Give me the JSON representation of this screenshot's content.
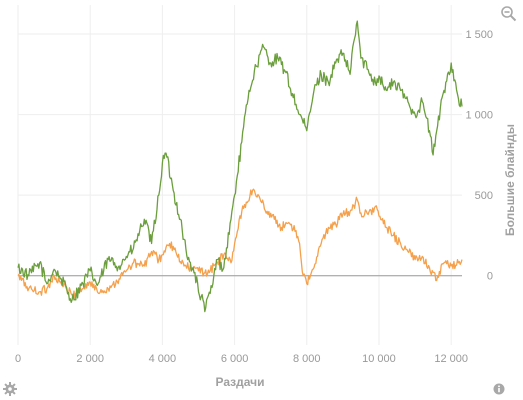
{
  "ui": {
    "icons": {
      "zoom": "zoom-out-icon",
      "settings": "gear-icon",
      "info": "info-icon"
    },
    "colors": {
      "grid": "#eeeeee",
      "zero_line": "#9a9a9a",
      "axis_text": "#999999",
      "icon": "#a8a8a8"
    }
  },
  "chart_data": {
    "type": "line",
    "title": "",
    "xlabel": "Раздачи",
    "ylabel": "Большие блайнды",
    "xlim": [
      0,
      12300
    ],
    "ylim": [
      -430,
      1680
    ],
    "x_ticks": [
      0,
      2000,
      4000,
      6000,
      8000,
      10000,
      12000
    ],
    "x_tick_labels": [
      "0",
      "2 000",
      "4 000",
      "6 000",
      "8 000",
      "10 000",
      "12 000"
    ],
    "y_ticks": [
      0,
      500,
      1000,
      1500
    ],
    "y_tick_labels": [
      "0",
      "500",
      "1 000",
      "1 500"
    ],
    "zero_line": true,
    "grid": true,
    "legend": "none",
    "series": [
      {
        "color": "#6b9e3c",
        "x": [
          0,
          300,
          600,
          800,
          1000,
          1200,
          1500,
          1800,
          2000,
          2200,
          2500,
          2800,
          3000,
          3200,
          3500,
          3700,
          3900,
          4000,
          4100,
          4300,
          4500,
          4700,
          4900,
          5000,
          5200,
          5400,
          5500,
          5700,
          5900,
          6000,
          6200,
          6400,
          6600,
          6800,
          7000,
          7200,
          7400,
          7600,
          7800,
          8000,
          8200,
          8400,
          8600,
          8800,
          9000,
          9200,
          9300,
          9400,
          9500,
          9700,
          9900,
          10000,
          10200,
          10400,
          10600,
          10800,
          11000,
          11200,
          11400,
          11500,
          11600,
          11800,
          12000,
          12200,
          12300
        ],
        "y": [
          50,
          0,
          80,
          -50,
          40,
          -20,
          -150,
          -50,
          30,
          -60,
          100,
          60,
          120,
          170,
          350,
          200,
          500,
          700,
          760,
          530,
          350,
          100,
          20,
          -100,
          -200,
          -50,
          100,
          50,
          350,
          500,
          830,
          1150,
          1300,
          1420,
          1320,
          1350,
          1270,
          1130,
          1000,
          900,
          1150,
          1250,
          1200,
          1320,
          1380,
          1250,
          1450,
          1580,
          1350,
          1280,
          1200,
          1240,
          1150,
          1200,
          1150,
          1080,
          1000,
          1080,
          900,
          750,
          900,
          1150,
          1320,
          1100,
          1050
        ]
      },
      {
        "color": "#f5a04b",
        "x": [
          0,
          300,
          600,
          800,
          1000,
          1200,
          1500,
          1800,
          2000,
          2200,
          2500,
          2800,
          3000,
          3200,
          3500,
          3700,
          3900,
          4000,
          4200,
          4400,
          4600,
          4800,
          5000,
          5300,
          5500,
          5700,
          5900,
          6000,
          6200,
          6500,
          6700,
          6900,
          7100,
          7300,
          7500,
          7700,
          7800,
          7900,
          8000,
          8200,
          8400,
          8600,
          8800,
          9000,
          9200,
          9400,
          9500,
          9700,
          9900,
          10000,
          10200,
          10400,
          10600,
          10800,
          11000,
          11200,
          11400,
          11600,
          11800,
          12000,
          12200,
          12300
        ],
        "y": [
          0,
          -80,
          -100,
          -80,
          0,
          -50,
          -120,
          -80,
          -40,
          -100,
          -80,
          -20,
          30,
          80,
          60,
          150,
          100,
          130,
          200,
          130,
          60,
          50,
          30,
          20,
          80,
          130,
          80,
          200,
          400,
          530,
          480,
          400,
          350,
          300,
          330,
          280,
          200,
          0,
          -50,
          50,
          200,
          300,
          320,
          380,
          400,
          470,
          390,
          380,
          430,
          370,
          300,
          250,
          200,
          150,
          100,
          120,
          50,
          -30,
          80,
          60,
          80,
          100
        ]
      }
    ]
  }
}
